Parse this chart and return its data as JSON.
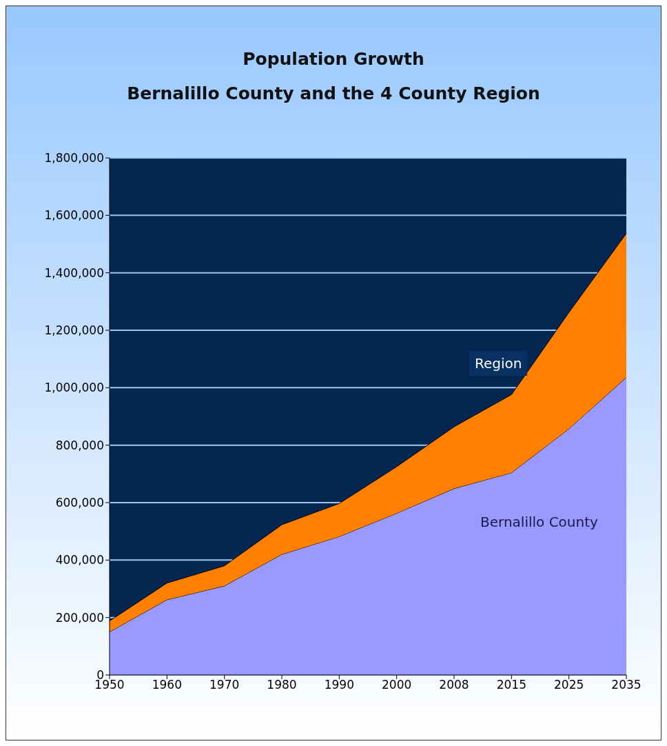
{
  "chart_data": {
    "type": "area",
    "title": "Population Growth",
    "subtitle": "Bernalillo County and the 4 County Region",
    "categories": [
      "1950",
      "1960",
      "1970",
      "1980",
      "1990",
      "2000",
      "2008",
      "2015",
      "2025",
      "2035"
    ],
    "stacked": true,
    "series": [
      {
        "name": "Bernalillo County",
        "color": "#9999ff",
        "values": [
          150000,
          262000,
          310000,
          420000,
          482000,
          563000,
          649000,
          704000,
          857000,
          1036000
        ]
      },
      {
        "name": "Region",
        "color": "#ff8000",
        "values": [
          38000,
          58000,
          70000,
          103000,
          115000,
          162000,
          215000,
          272000,
          405000,
          501000
        ]
      }
    ],
    "ylim": [
      0,
      1800000
    ],
    "yticks": [
      0,
      {
        "value": 200000,
        "label": "200,000"
      },
      {
        "value": 400000,
        "label": "400,000"
      },
      {
        "value": 600000,
        "label": "600,000"
      },
      {
        "value": 800000,
        "label": "800,000"
      },
      {
        "value": 1000000,
        "label": "1,000,000"
      },
      {
        "value": 1200000,
        "label": "1,200,000"
      },
      {
        "value": 1400000,
        "label": "1,400,000"
      },
      {
        "value": 1600000,
        "label": "1,600,000"
      },
      {
        "value": 1800000,
        "label": "1,800,000"
      }
    ],
    "grid": "y",
    "legend": false
  }
}
